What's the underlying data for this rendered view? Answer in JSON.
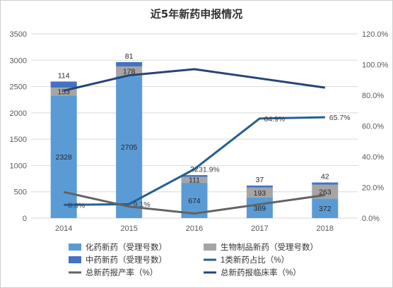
{
  "chart_data": {
    "type": "bar",
    "title": "近5年新药申报情况",
    "categories": [
      "2014",
      "2015",
      "2016",
      "2017",
      "2018"
    ],
    "left_axis": {
      "min": 0,
      "max": 3500,
      "ticks": [
        "0",
        "500",
        "1000",
        "1500",
        "2000",
        "2500",
        "3000",
        "3500"
      ]
    },
    "right_axis": {
      "min": 0,
      "max": 1.2,
      "ticks": [
        "0.0%",
        "20.0%",
        "40.0%",
        "60.0%",
        "80.0%",
        "100.0%",
        "120.0%"
      ]
    },
    "grid": true,
    "legend_position": "bottom",
    "stacked_series": [
      {
        "name": "化药新药（受理号数）",
        "color": "#5b9bd5",
        "values": [
          2328,
          2705,
          674,
          389,
          372
        ],
        "labels": [
          "2328",
          "2705",
          "674",
          "389",
          "372"
        ]
      },
      {
        "name": "生物制品新药（受理号数）",
        "color": "#a5a5a5",
        "values": [
          153,
          178,
          111,
          193,
          263
        ],
        "labels": [
          "153",
          "178",
          "111",
          "193",
          "263"
        ]
      },
      {
        "name": "中药新药（受理号数）",
        "color": "#4472c4",
        "values": [
          114,
          81,
          32,
          37,
          42
        ],
        "labels": [
          "114",
          "81",
          "32",
          "37",
          "42"
        ]
      }
    ],
    "line_series": [
      {
        "name": "1类新药占比（%）",
        "color": "#255e91",
        "values": [
          0.086,
          0.091,
          0.319,
          0.649,
          0.657
        ],
        "labels": [
          "8.6%",
          "9.1%",
          "31.9%",
          "64.9%",
          "65.7%"
        ]
      },
      {
        "name": "总新药报产率（%）",
        "color": "#636363",
        "values": [
          0.17,
          0.075,
          0.03,
          0.09,
          0.15
        ]
      },
      {
        "name": "总新药报临床率（%）",
        "color": "#264478",
        "values": [
          0.83,
          0.93,
          0.97,
          0.91,
          0.85
        ]
      }
    ]
  }
}
